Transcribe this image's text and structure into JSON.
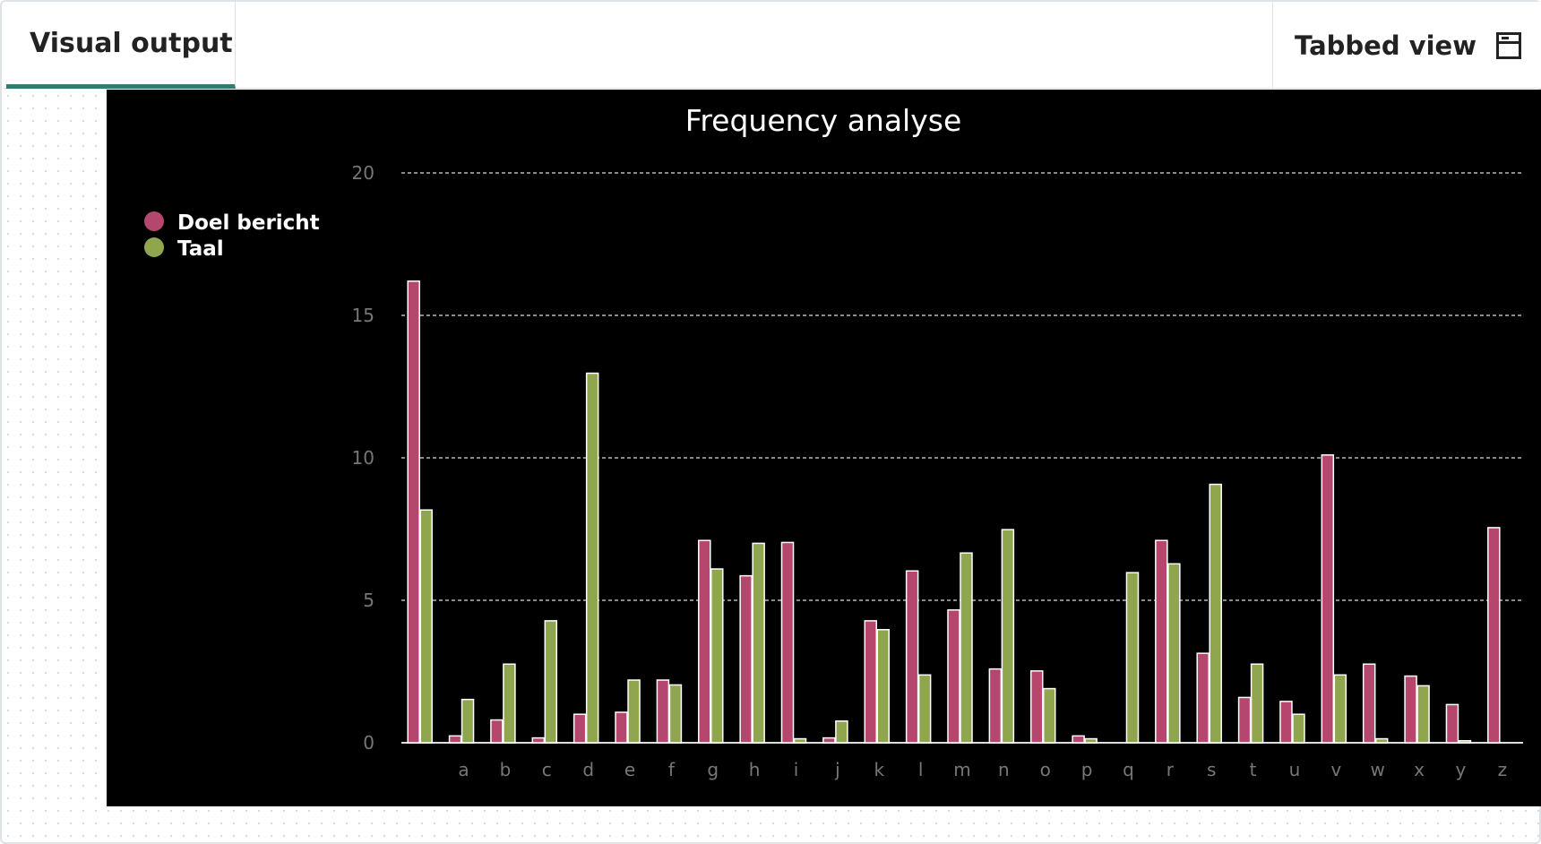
{
  "tabs": {
    "active": "Visual output",
    "tabbed_view": "Tabbed view",
    "tabbed_icon": "window-layout-icon"
  },
  "chart_data": {
    "type": "bar",
    "title": "Frequency analyse",
    "categories": [
      "",
      "a",
      "b",
      "c",
      "d",
      "e",
      "f",
      "g",
      "h",
      "i",
      "j",
      "k",
      "l",
      "m",
      "n",
      "o",
      "p",
      "q",
      "r",
      "s",
      "t",
      "u",
      "v",
      "w",
      "x",
      "y",
      "z"
    ],
    "series": [
      {
        "name": "Doel bericht",
        "color": "#b5466e",
        "values": [
          16.2,
          0.24,
          0.8,
          0.17,
          1.0,
          1.07,
          2.2,
          7.1,
          5.86,
          7.03,
          0.17,
          4.28,
          6.03,
          4.66,
          2.59,
          2.52,
          0.24,
          0,
          7.1,
          3.14,
          1.59,
          1.45,
          10.1,
          2.76,
          2.34,
          1.34,
          7.55
        ]
      },
      {
        "name": "Taal",
        "color": "#8fa64e",
        "values": [
          8.17,
          1.52,
          2.76,
          4.28,
          12.97,
          2.2,
          2.03,
          6.1,
          7.0,
          0.14,
          0.76,
          3.97,
          2.38,
          6.66,
          7.48,
          1.9,
          0.14,
          5.97,
          6.28,
          9.07,
          2.76,
          1.0,
          2.38,
          0.14,
          2.0,
          0.07,
          0
        ]
      }
    ],
    "yticks": [
      "0",
      "5",
      "10",
      "15",
      "20"
    ],
    "ylim": [
      0,
      20
    ],
    "grid": true,
    "legend": "top-left",
    "background": "#000000"
  }
}
